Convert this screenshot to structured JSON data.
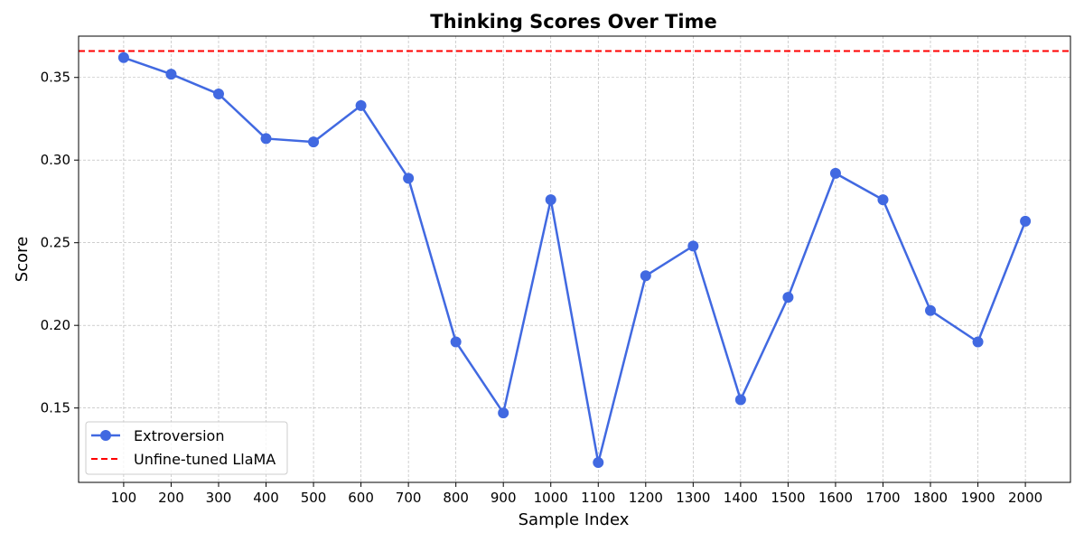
{
  "chart_data": {
    "type": "line",
    "title": "Thinking Scores Over Time",
    "xlabel": "Sample Index",
    "ylabel": "Score",
    "x": [
      100,
      200,
      300,
      400,
      500,
      600,
      700,
      800,
      900,
      1000,
      1100,
      1200,
      1300,
      1400,
      1500,
      1600,
      1700,
      1800,
      1900,
      2000
    ],
    "x_tick_labels": [
      "100",
      "200",
      "300",
      "400",
      "500",
      "600",
      "700",
      "800",
      "900",
      "1000",
      "1100",
      "1200",
      "1300",
      "1400",
      "1500",
      "1600",
      "1700",
      "1800",
      "1900",
      "2000"
    ],
    "y_ticks": [
      0.15,
      0.2,
      0.25,
      0.3,
      0.35
    ],
    "y_tick_labels": [
      "0.15",
      "0.20",
      "0.25",
      "0.30",
      "0.35"
    ],
    "xlim": [
      5,
      2095
    ],
    "ylim": [
      0.105,
      0.375
    ],
    "grid": true,
    "legend_position": "lower-left",
    "series": [
      {
        "name": "Extroversion",
        "color": "#4169e1",
        "marker": "circle",
        "values": [
          0.362,
          0.352,
          0.34,
          0.313,
          0.311,
          0.333,
          0.289,
          0.19,
          0.147,
          0.276,
          0.117,
          0.23,
          0.248,
          0.155,
          0.217,
          0.292,
          0.276,
          0.209,
          0.19,
          0.263
        ]
      }
    ],
    "reference_lines": [
      {
        "name": "Unfine-tuned LlaMA",
        "value": 0.366,
        "color": "#ff0000",
        "style": "dashed"
      }
    ]
  }
}
